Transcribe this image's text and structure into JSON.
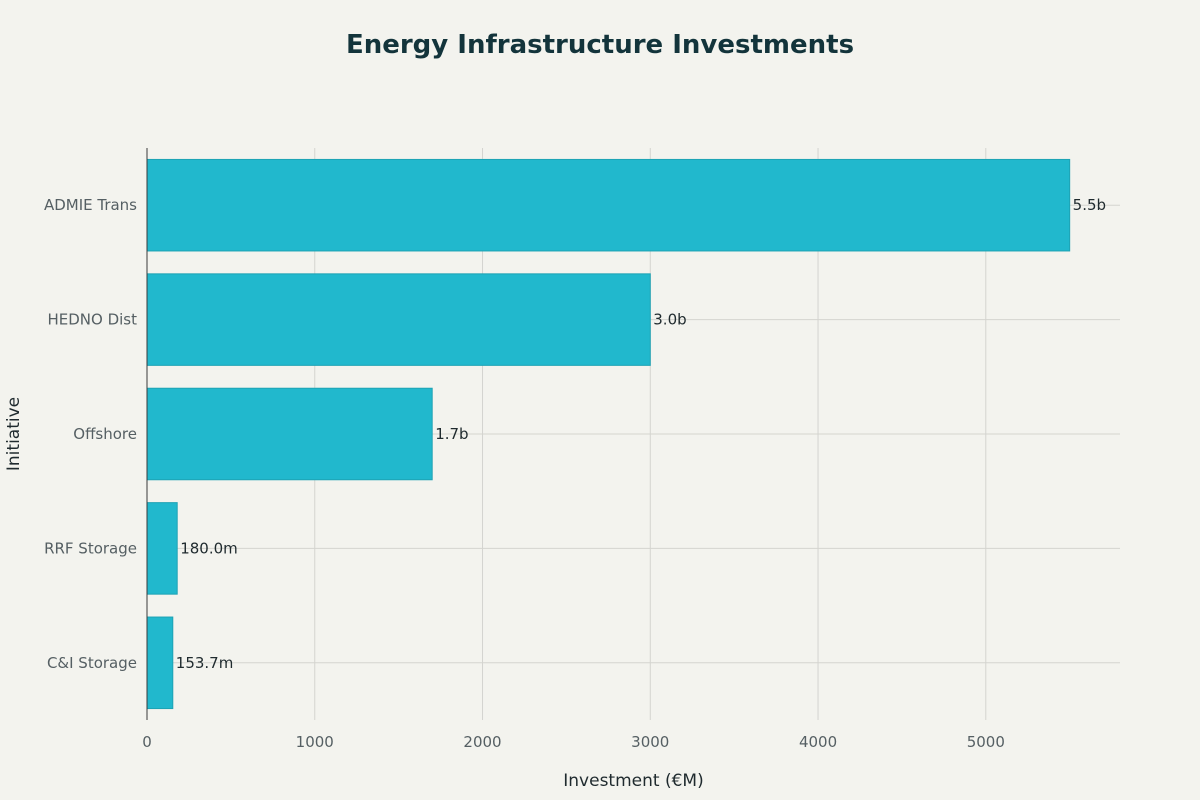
{
  "chart_data": {
    "type": "bar",
    "orientation": "horizontal",
    "title": "Energy Infrastructure Investments",
    "xlabel": "Investment (€M)",
    "ylabel": "Initiative",
    "categories": [
      "ADMIE Trans",
      "HEDNO Dist",
      "Offshore",
      "RRF Storage",
      "C&I Storage"
    ],
    "values": [
      5500,
      3000,
      1700,
      180,
      153.7
    ],
    "data_labels": [
      "5.5b",
      "3.0b",
      "1.7b",
      "180.0m",
      "153.7m"
    ],
    "xticks": [
      0,
      1000,
      2000,
      3000,
      4000,
      5000
    ],
    "xlim": [
      0,
      5800
    ],
    "grid": true,
    "bar_color": "#21b8cd"
  }
}
